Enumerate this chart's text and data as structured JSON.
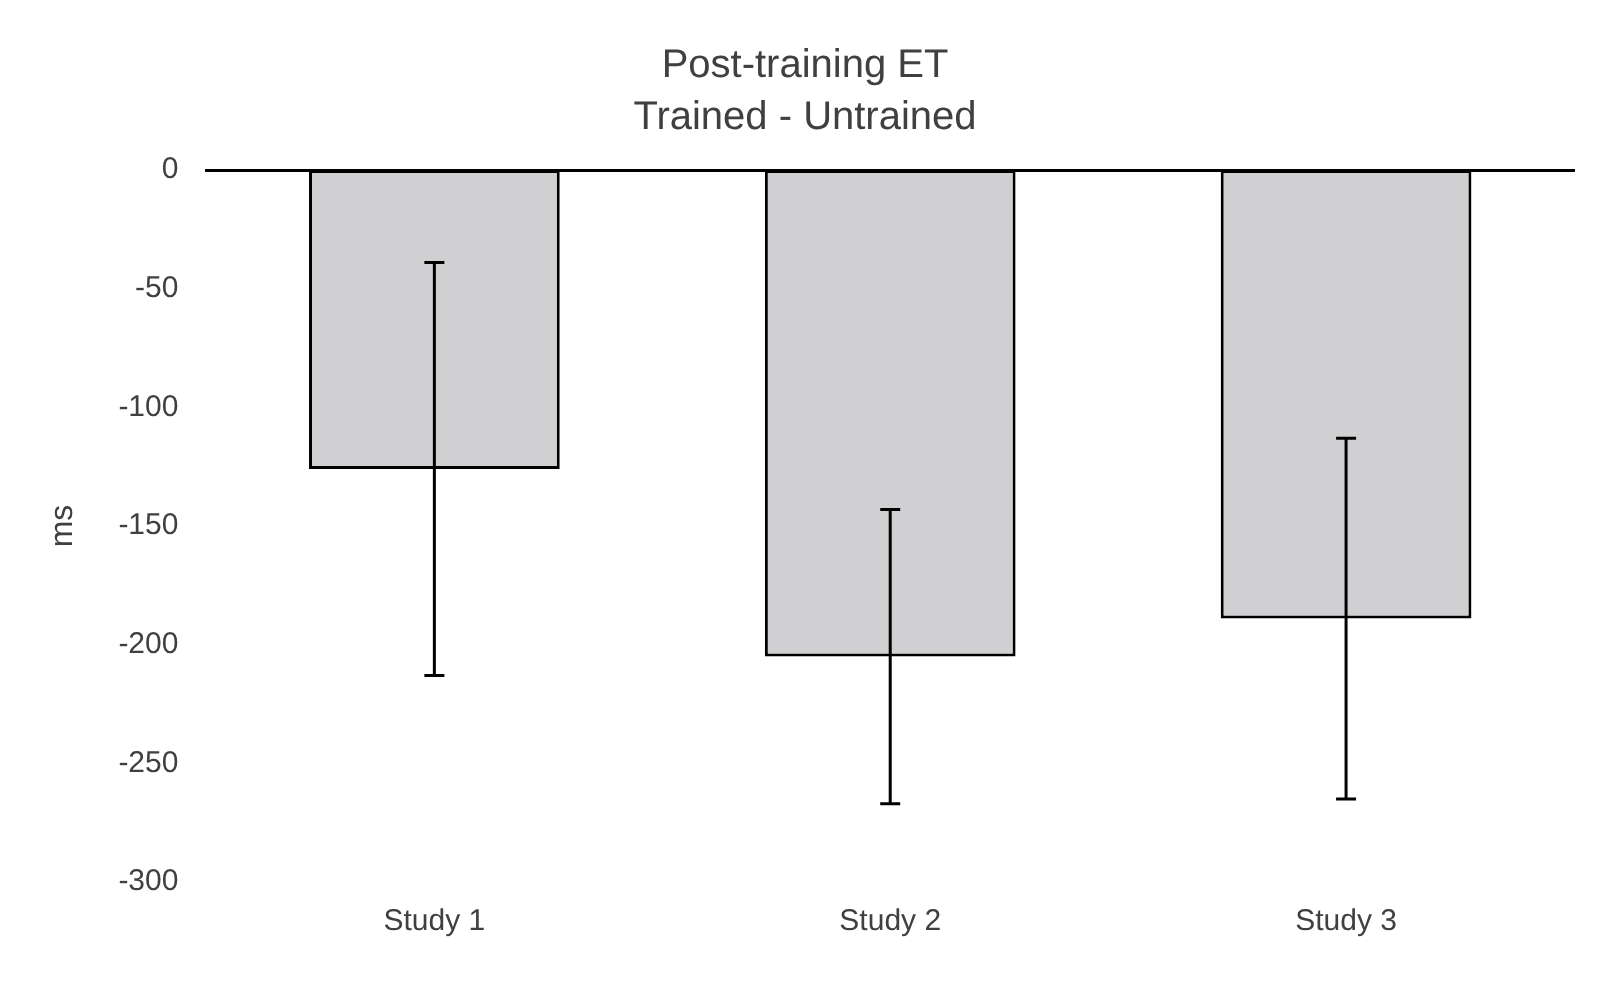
{
  "chart_data": {
    "type": "bar",
    "title": "Post-training ET",
    "subtitle": "Trained - Untrained",
    "ylabel": "ms",
    "categories": [
      "Study 1",
      "Study 2",
      "Study 3"
    ],
    "values": [
      -126,
      -205,
      -189
    ],
    "errors": [
      87,
      62,
      76
    ],
    "color": "#d0cfd2",
    "ylim": [
      -300,
      0
    ],
    "yticks": [
      -300,
      -250,
      -200,
      -150,
      -100,
      -50,
      0
    ],
    "grid": false,
    "legend": false
  }
}
